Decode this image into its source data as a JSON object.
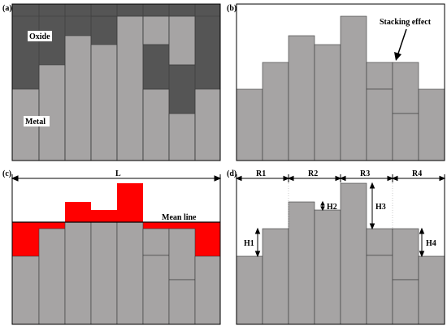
{
  "colors": {
    "metal": "#a6a4a4",
    "oxide": "#555555",
    "highlight": "#ff0000",
    "outline": "#000000",
    "background": "#ffffff",
    "label_box": "#ffffff"
  },
  "panels": {
    "a": {
      "label": "(a)",
      "oxide_label": "Oxide",
      "metal_label": "Metal"
    },
    "b": {
      "label": "(b)",
      "annotation": "Stacking effect"
    },
    "c": {
      "label": "(c)",
      "length_label": "L",
      "mean_line_label": "Mean line"
    },
    "d": {
      "label": "(d)",
      "region_labels": [
        "R1",
        "R2",
        "R3",
        "R4"
      ],
      "height_labels": [
        "H1",
        "H2",
        "H3",
        "H4"
      ]
    }
  }
}
